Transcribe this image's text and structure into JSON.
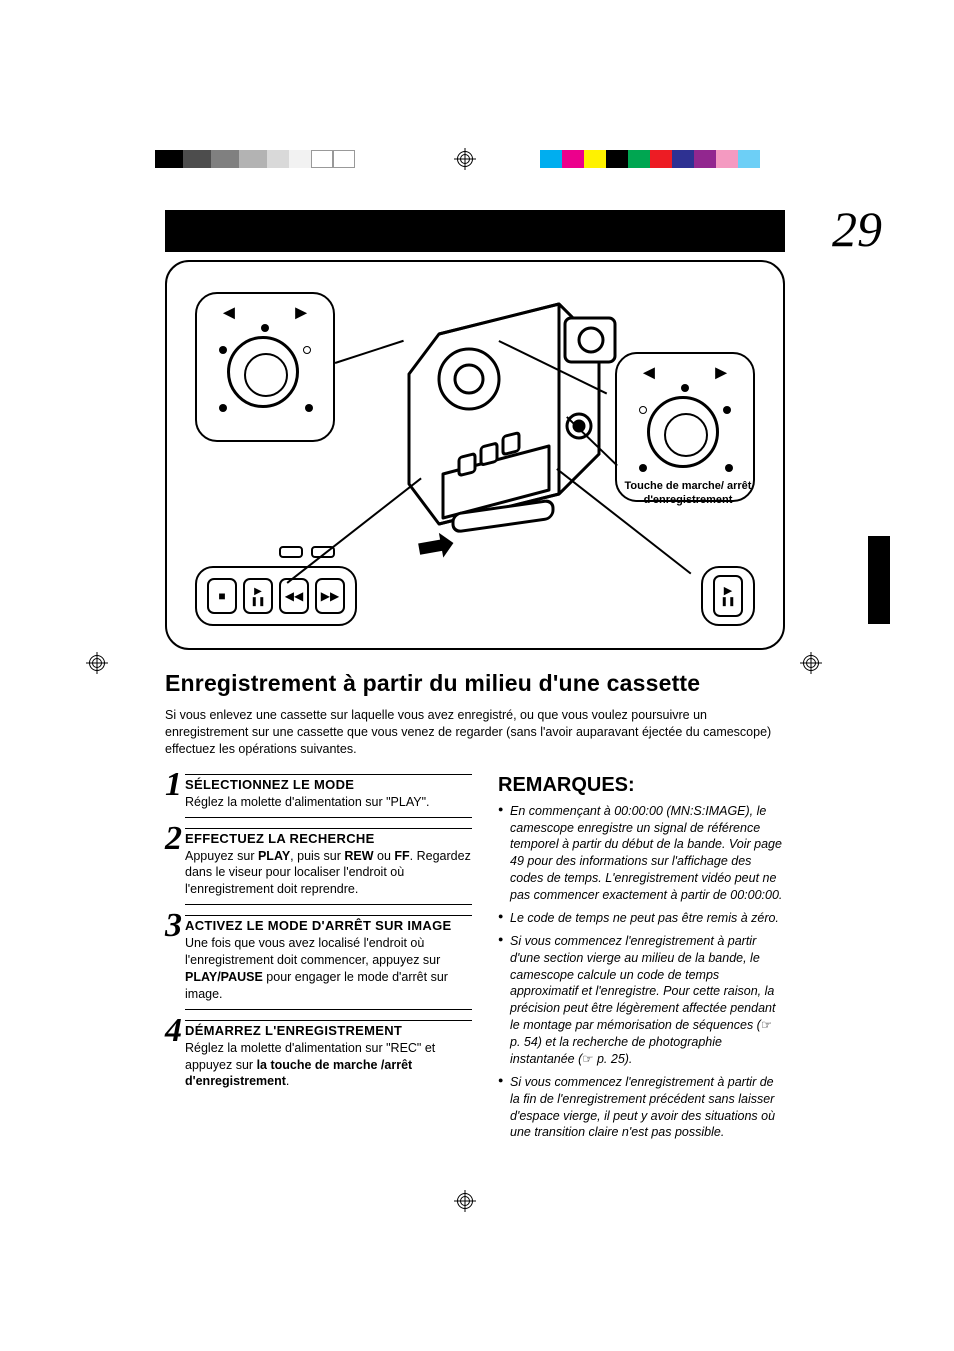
{
  "page_number": "29",
  "reg_bw_colors": [
    "#000000",
    "#4d4d4d",
    "#808080",
    "#b3b3b3",
    "#d9d9d9",
    "#f2f2f2",
    "#ffffff",
    "#ffffff"
  ],
  "reg_bw_widths": [
    28,
    28,
    28,
    28,
    22,
    22,
    22,
    22
  ],
  "reg_color_colors": [
    "#00aeef",
    "#ec008c",
    "#fff200",
    "#000000",
    "#00a651",
    "#ed1c24",
    "#2e3192",
    "#92278f",
    "#f49ac1",
    "#6dcff6"
  ],
  "diagram": {
    "caption": "Touche de marche/ arrêt d'enregistrement",
    "buttons_left": [
      "■",
      "▶ ❚❚",
      "◀◀",
      "▶▶"
    ],
    "buttons_right": [
      "▶",
      "❚❚"
    ]
  },
  "title": "Enregistrement à partir du milieu d'une cassette",
  "intro": "Si vous enlevez une cassette sur laquelle vous avez enregistré, ou que vous voulez poursuivre un enregistrement sur une cassette que vous venez de regarder (sans l'avoir auparavant éjectée du camescope) effectuez les opérations suivantes.",
  "steps": [
    {
      "n": "1",
      "head": "SÉLECTIONNEZ LE MODE",
      "body": "Réglez la molette d'alimentation sur \"PLAY\"."
    },
    {
      "n": "2",
      "head": "EFFECTUEZ LA RECHERCHE",
      "body": "Appuyez sur <b>PLAY</b>, puis sur <b>REW</b> ou <b>FF</b>. Regardez dans le viseur pour localiser l'endroit où l'enregistrement doit reprendre."
    },
    {
      "n": "3",
      "head": "ACTIVEZ LE MODE D'ARRÊT SUR IMAGE",
      "body": "Une fois que vous avez localisé l'endroit où l'enregistrement doit commencer, appuyez sur <b>PLAY/PAUSE</b> pour engager le mode d'arrêt sur image."
    },
    {
      "n": "4",
      "head": "DÉMARREZ L'ENREGISTREMENT",
      "body": "Réglez la molette d'alimentation sur \"REC\" et appuyez sur <b>la touche de marche /arrêt d'enregistrement</b>."
    }
  ],
  "remarks_title": "REMARQUES:",
  "remarks": [
    "En commençant à 00:00:00 (MN:S:IMAGE), le camescope enregistre un signal de référence temporel à partir du début de la bande. Voir page 49 pour des informations sur l'affichage des codes de temps. L'enregistrement vidéo peut ne pas commencer exactement à partir de 00:00:00.",
    "Le code de temps ne peut pas être remis à zéro.",
    "Si vous commencez l'enregistrement à partir d'une section vierge au milieu de la bande, le camescope calcule un code de temps approximatif et l'enregistre. Pour cette raison, la précision peut être légèrement affectée pendant le montage par mémorisation de séquences (☞ p. 54) et la recherche de photographie instantanée (☞ p. 25).",
    "Si vous commencez l'enregistrement à partir de la fin de l'enregistrement précédent sans laisser d'espace vierge, il peut y avoir des situations où une transition claire n'est pas possible."
  ]
}
